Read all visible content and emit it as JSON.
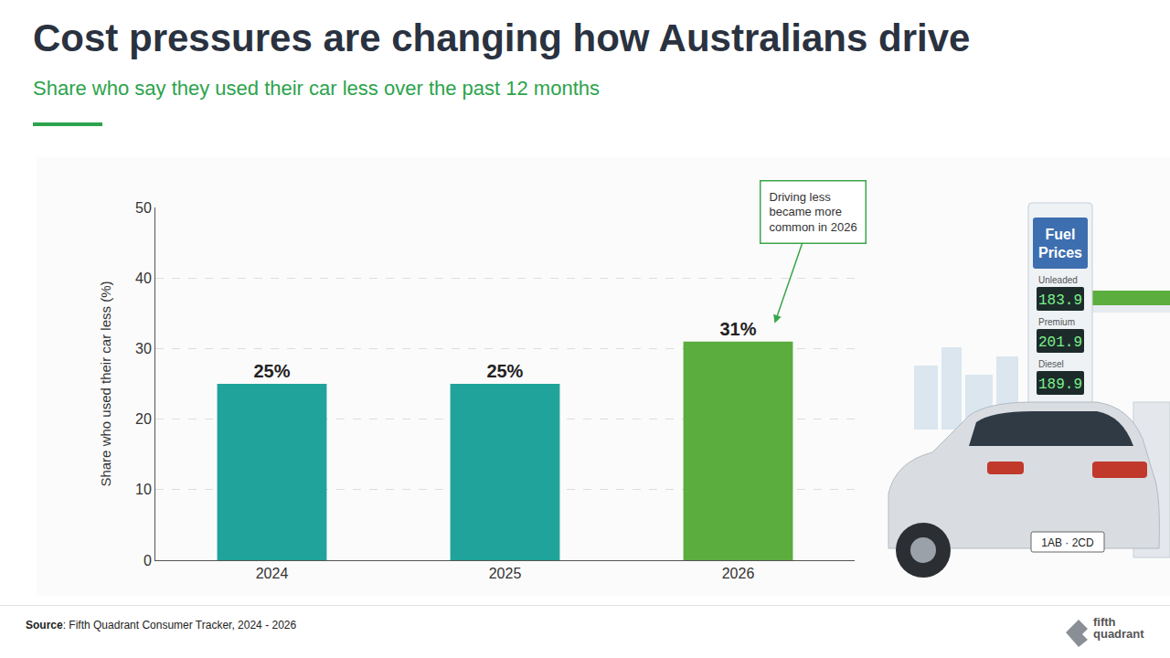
{
  "chart_data": {
    "type": "bar",
    "title": "Cost pressures are changing how Australians drive",
    "subtitle": "Share who say they used their car less over the past 12 months",
    "categories": [
      "2024",
      "2025",
      "2026"
    ],
    "values": [
      25,
      25,
      31
    ],
    "value_labels": [
      "25%",
      "25%",
      "31%"
    ],
    "data_labels": true,
    "colors": [
      "#1fa39a",
      "#1fa39a",
      "#5bad3e"
    ],
    "ylabel": "Share who used their car less (%)",
    "ylim": [
      0,
      50
    ],
    "yticks": [
      0,
      10,
      20,
      30,
      40,
      50
    ],
    "grid": true,
    "annotation": {
      "lines": [
        "Driving less",
        "became more",
        "common in 2026"
      ],
      "category": "2026"
    },
    "source": "Source: Fifth Quadrant Consumer Tracker, 2024 - 2026"
  },
  "illustration": {
    "sign_title": "Fuel Prices",
    "prices": [
      {
        "label": "Unleaded",
        "value": "183.9"
      },
      {
        "label": "Premium",
        "value": "201.9"
      },
      {
        "label": "Diesel",
        "value": "189.9"
      }
    ],
    "plate": "1AB · 2CD"
  },
  "logo": "fifth quadrant"
}
